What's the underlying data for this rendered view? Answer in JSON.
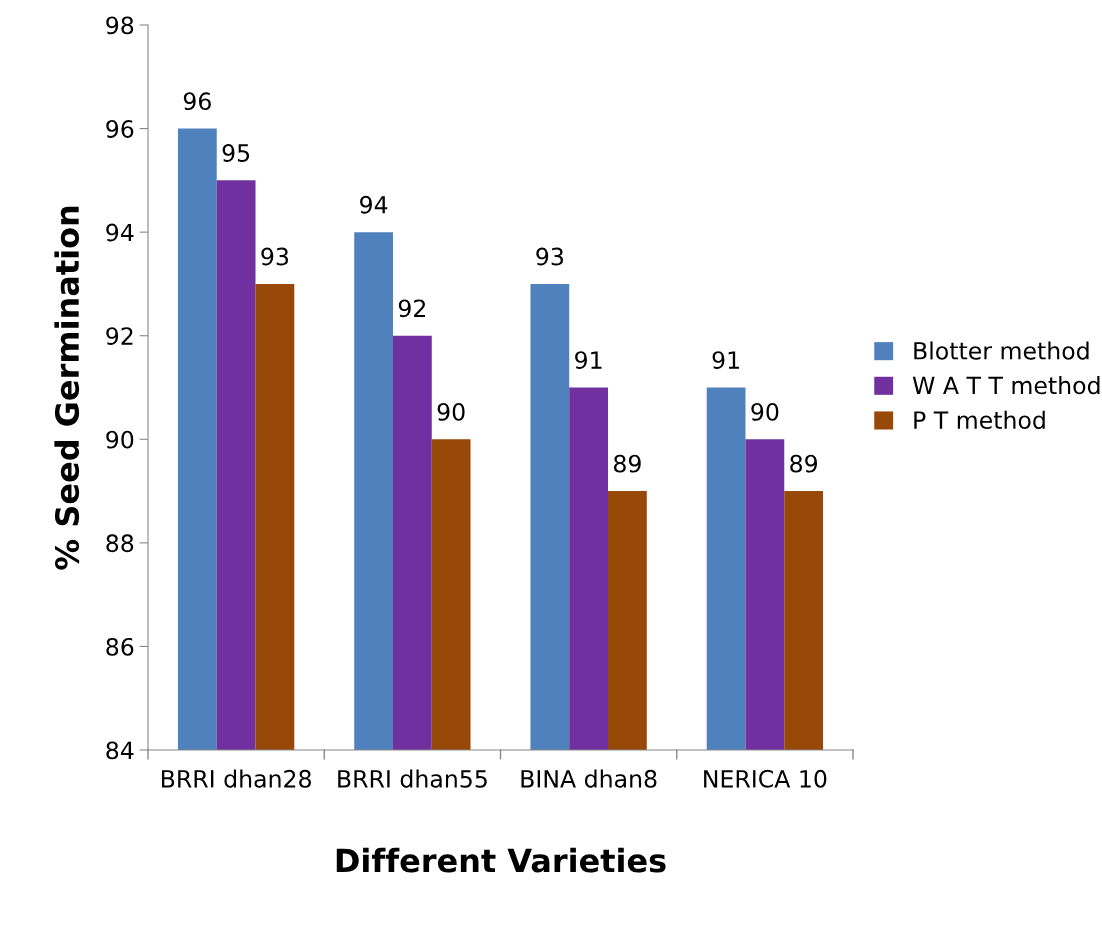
{
  "chart_data": {
    "type": "bar",
    "xlabel": "Different Varieties",
    "ylabel": "% Seed Germination",
    "categories": [
      "BRRI dhan28",
      "BRRI dhan55",
      "BINA dhan8",
      "NERICA 10"
    ],
    "series": [
      {
        "name": "Blotter method",
        "color": "#4f81bd",
        "values": [
          96,
          94,
          93,
          91
        ]
      },
      {
        "name": "W A T T method",
        "color": "#7030a0",
        "values": [
          95,
          92,
          91,
          90
        ]
      },
      {
        "name": "P T method",
        "color": "#984807",
        "values": [
          93,
          90,
          89,
          89
        ]
      }
    ],
    "ylim": [
      84,
      98
    ],
    "yticks": [
      84,
      86,
      88,
      90,
      92,
      94,
      96,
      98
    ],
    "grid": false,
    "legend": "right",
    "data_labels": true
  }
}
